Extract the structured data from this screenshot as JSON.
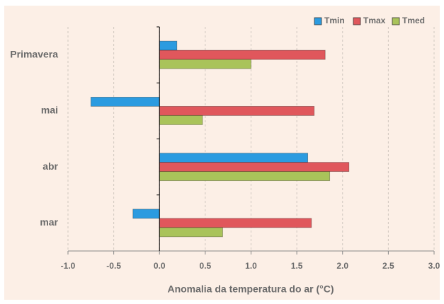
{
  "chart_data": {
    "type": "hbar",
    "xlabel": "Anomalia da temperatura  do ar (°C)",
    "categories": [
      "Primavera",
      "mai",
      "abr",
      "mar"
    ],
    "series": [
      {
        "name": "Tmin",
        "color": "#2b9be0",
        "values": [
          0.19,
          -0.75,
          1.62,
          -0.29
        ]
      },
      {
        "name": "Tmax",
        "color": "#e0575c",
        "values": [
          1.81,
          1.69,
          2.07,
          1.66
        ]
      },
      {
        "name": "Tmed",
        "color": "#a9c35a",
        "values": [
          1.0,
          0.47,
          1.86,
          0.69
        ]
      }
    ],
    "xlim": [
      -1,
      3
    ],
    "xticks": [
      {
        "value": -1,
        "label": "-1.0"
      },
      -0.5,
      {
        "value": 0,
        "label": "0.0"
      },
      0.5,
      {
        "value": 1,
        "label": "1.0"
      },
      1.5,
      {
        "value": 2,
        "label": "2.0"
      },
      2.5,
      {
        "value": 3,
        "label": "3.0"
      }
    ],
    "grid": true,
    "legend": "top-right"
  }
}
